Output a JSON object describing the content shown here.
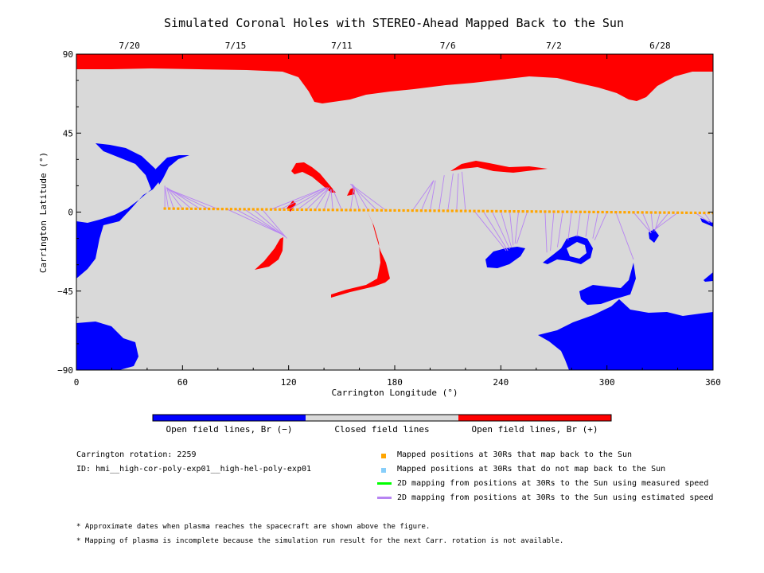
{
  "colors": {
    "positive_open": "#ff0000",
    "negative_open": "#0000ff",
    "closed": "#d9d9d9",
    "mapped": "#ffa500",
    "unmapped": "#87cefa",
    "measured_speed": "#00ff00",
    "estimated_speed": "#b784f2"
  },
  "chart_data": {
    "type": "map",
    "title": "Simulated Coronal Holes with STEREO-Ahead Mapped Back to the Sun",
    "xlabel": "Carrington Longitude (°)",
    "ylabel": "Carrington Latitude (°)",
    "xlim": [
      0,
      360
    ],
    "ylim": [
      -90,
      90
    ],
    "x_ticks": [
      0,
      60,
      120,
      180,
      240,
      300,
      360
    ],
    "y_ticks": [
      90,
      45,
      0,
      -45,
      -90
    ],
    "y_tick_labels": [
      "90",
      "45",
      "0",
      "−45",
      "−90"
    ],
    "top_date_ticks": [
      {
        "lon": 30,
        "label": "7/20"
      },
      {
        "lon": 90,
        "label": "7/15"
      },
      {
        "lon": 150,
        "label": "7/11"
      },
      {
        "lon": 210,
        "label": "7/6"
      },
      {
        "lon": 270,
        "label": "7/2"
      },
      {
        "lon": 330,
        "label": "6/28"
      }
    ],
    "mapped_points_at_30Rs": {
      "lon_start": 50,
      "lon_end": 360,
      "lon_step": 2.5,
      "lat_start": 2.0,
      "lat_end": -0.5
    },
    "estimated_speed_mappings": [
      {
        "from_lon": 50,
        "to_lon": 50,
        "to_lat": 15
      },
      {
        "from_lon": 52,
        "to_lon": 50,
        "to_lat": 15
      },
      {
        "from_lon": 55,
        "to_lon": 51,
        "to_lat": 14
      },
      {
        "from_lon": 60,
        "to_lon": 51,
        "to_lat": 14
      },
      {
        "from_lon": 65,
        "to_lon": 51,
        "to_lat": 14
      },
      {
        "from_lon": 70,
        "to_lon": 51,
        "to_lat": 14
      },
      {
        "from_lon": 75,
        "to_lon": 52,
        "to_lat": 13
      },
      {
        "from_lon": 80,
        "to_lon": 52,
        "to_lat": 13
      },
      {
        "from_lon": 85,
        "to_lon": 117,
        "to_lat": -13
      },
      {
        "from_lon": 90,
        "to_lon": 117,
        "to_lat": -13
      },
      {
        "from_lon": 95,
        "to_lon": 118,
        "to_lat": -14
      },
      {
        "from_lon": 100,
        "to_lon": 118,
        "to_lat": -14
      },
      {
        "from_lon": 105,
        "to_lon": 119,
        "to_lat": -15
      },
      {
        "from_lon": 110,
        "to_lon": 141,
        "to_lat": 14
      },
      {
        "from_lon": 115,
        "to_lon": 141,
        "to_lat": 14
      },
      {
        "from_lon": 120,
        "to_lon": 142,
        "to_lat": 14
      },
      {
        "from_lon": 125,
        "to_lon": 142,
        "to_lat": 14
      },
      {
        "from_lon": 130,
        "to_lon": 143,
        "to_lat": 14
      },
      {
        "from_lon": 135,
        "to_lon": 143,
        "to_lat": 14
      },
      {
        "from_lon": 140,
        "to_lon": 144,
        "to_lat": 13
      },
      {
        "from_lon": 145,
        "to_lon": 144,
        "to_lat": 13
      },
      {
        "from_lon": 150,
        "to_lon": 145,
        "to_lat": 13
      },
      {
        "from_lon": 155,
        "to_lon": 157,
        "to_lat": 15
      },
      {
        "from_lon": 160,
        "to_lon": 156,
        "to_lat": 15
      },
      {
        "from_lon": 165,
        "to_lon": 156,
        "to_lat": 16
      },
      {
        "from_lon": 170,
        "to_lon": 155,
        "to_lat": 16
      },
      {
        "from_lon": 175,
        "to_lon": 155,
        "to_lat": 16
      },
      {
        "from_lon": 190,
        "to_lon": 202,
        "to_lat": 18
      },
      {
        "from_lon": 195,
        "to_lon": 202,
        "to_lat": 18
      },
      {
        "from_lon": 200,
        "to_lon": 203,
        "to_lat": 18
      },
      {
        "from_lon": 205,
        "to_lon": 208,
        "to_lat": 21
      },
      {
        "from_lon": 210,
        "to_lon": 213,
        "to_lat": 22
      },
      {
        "from_lon": 215,
        "to_lon": 216,
        "to_lat": 22
      },
      {
        "from_lon": 220,
        "to_lon": 218,
        "to_lat": 23
      },
      {
        "from_lon": 225,
        "to_lon": 243,
        "to_lat": -22
      },
      {
        "from_lon": 230,
        "to_lon": 244,
        "to_lat": -22
      },
      {
        "from_lon": 235,
        "to_lon": 245,
        "to_lat": -21
      },
      {
        "from_lon": 240,
        "to_lon": 246,
        "to_lat": -20
      },
      {
        "from_lon": 245,
        "to_lon": 247,
        "to_lat": -19
      },
      {
        "from_lon": 250,
        "to_lon": 248,
        "to_lat": -18
      },
      {
        "from_lon": 255,
        "to_lon": 249,
        "to_lat": -18
      },
      {
        "from_lon": 265,
        "to_lon": 266,
        "to_lat": -23
      },
      {
        "from_lon": 270,
        "to_lon": 268,
        "to_lat": -22
      },
      {
        "from_lon": 275,
        "to_lon": 272,
        "to_lat": -20
      },
      {
        "from_lon": 280,
        "to_lon": 278,
        "to_lat": -16
      },
      {
        "from_lon": 285,
        "to_lon": 283,
        "to_lat": -14
      },
      {
        "from_lon": 290,
        "to_lon": 288,
        "to_lat": -14
      },
      {
        "from_lon": 295,
        "to_lon": 292,
        "to_lat": -15
      },
      {
        "from_lon": 300,
        "to_lon": 293,
        "to_lat": -16
      },
      {
        "from_lon": 305,
        "to_lon": 315,
        "to_lat": -27
      },
      {
        "from_lon": 315,
        "to_lon": 325,
        "to_lat": -12
      },
      {
        "from_lon": 320,
        "to_lon": 325,
        "to_lat": -12
      },
      {
        "from_lon": 325,
        "to_lon": 326,
        "to_lat": -11
      },
      {
        "from_lon": 330,
        "to_lon": 327,
        "to_lat": -11
      },
      {
        "from_lon": 335,
        "to_lon": 327,
        "to_lat": -10
      },
      {
        "from_lon": 340,
        "to_lon": 327,
        "to_lat": -10
      },
      {
        "from_lon": 350,
        "to_lon": 358,
        "to_lat": -6
      },
      {
        "from_lon": 355,
        "to_lon": 359,
        "to_lat": -6
      }
    ],
    "colorbar": {
      "labels": [
        "Open field lines, Br (−)",
        "Closed field lines",
        "Open field lines, Br (+)"
      ]
    },
    "legend": {
      "mapped": "Mapped positions at 30Rs that map back to the Sun",
      "unmapped": "Mapped positions at 30Rs that do not map back to the Sun",
      "measured": "2D mapping from positions at 30Rs to the Sun using measured speed",
      "estimated": "2D mapping from positions at 30Rs to the Sun using estimated speed"
    }
  },
  "info": {
    "rotation": "Carrington rotation: 2259",
    "id": "ID: hmi__high-cor-poly-exp01__high-hel-poly-exp01"
  },
  "notes": [
    "* Approximate dates when plasma reaches the spacecraft are shown above the figure.",
    "* Mapping of plasma is incomplete because the simulation run result for the next Carr. rotation is not available."
  ]
}
